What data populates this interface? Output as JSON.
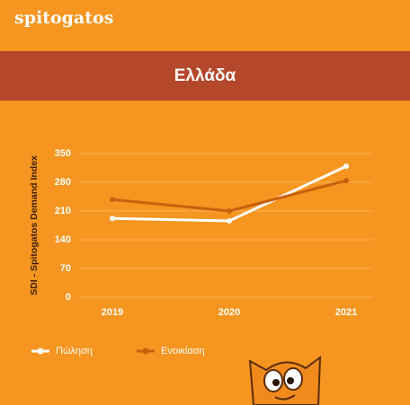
{
  "brand": "spitogatos",
  "chart_data": {
    "type": "line",
    "title": "Ελλάδα",
    "y_label": "SDI - Spitogatos Demand Index",
    "categories": [
      "2019",
      "2020",
      "2021"
    ],
    "series": [
      {
        "name": "Πώληση",
        "color": "#ffffff",
        "values": [
          192,
          186,
          319
        ]
      },
      {
        "name": "Ενοικίαση",
        "color": "#c8600f",
        "values": [
          238,
          210,
          284
        ]
      }
    ],
    "ylim": [
      0,
      350
    ],
    "yticks": [
      0,
      70,
      140,
      210,
      280,
      350
    ],
    "grid": true,
    "legend": "bottom-left"
  }
}
